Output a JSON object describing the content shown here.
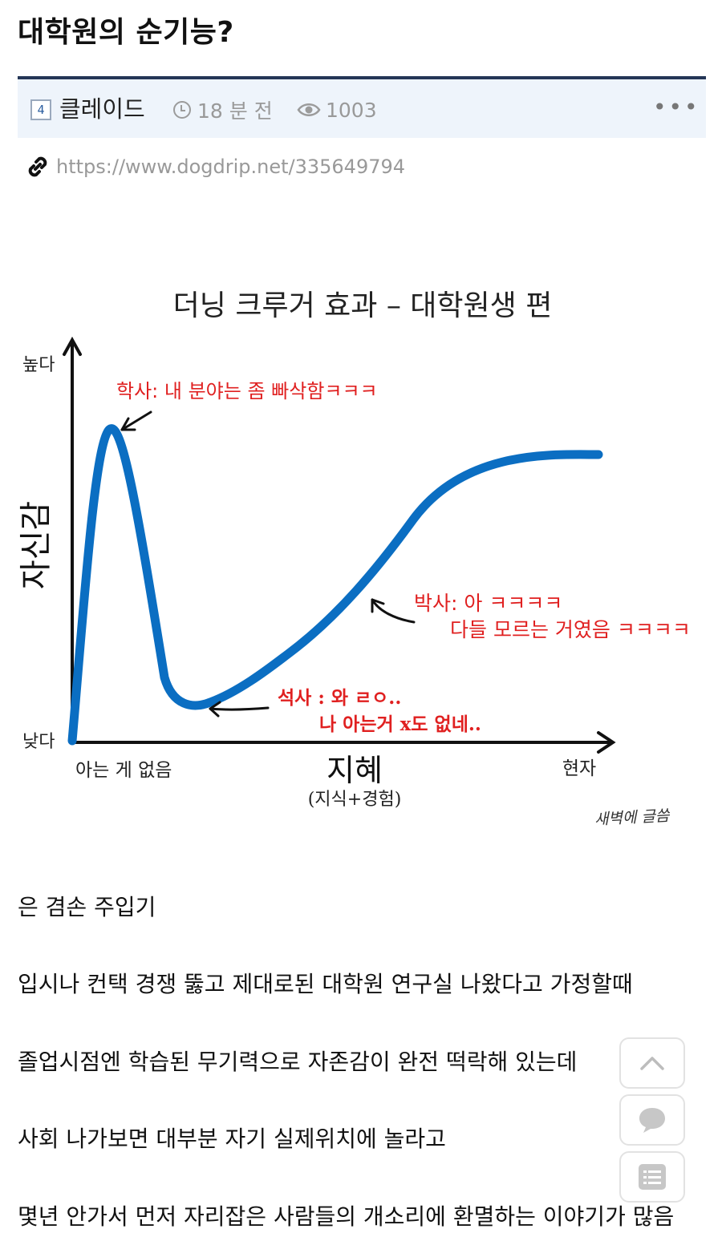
{
  "post": {
    "title": "대학원의 순기능?",
    "author": "클레이드",
    "author_badge": "4",
    "time": "18 분 전",
    "views": "1003",
    "more": "•••",
    "url": "https://www.dogdrip.net/335649794"
  },
  "figure": {
    "title": "더닝 크루거 효과 – 대학원생 편",
    "y_axis_label": "자신감",
    "y_high": "높다",
    "y_low": "낮다",
    "x_axis_label": "지혜",
    "x_axis_sublabel": "(지식+경험)",
    "x_left": "아는 게 없음",
    "x_right": "현자",
    "annotation_bachelor": "학사: 내 분야는 좀 빠삭함ㅋㅋㅋ",
    "annotation_phd_1": "박사: 아 ㅋㅋㅋㅋ",
    "annotation_phd_2": "다들 모르는 거였음 ㅋㅋㅋㅋ",
    "annotation_master_1": "석사 : 와 ㄹㅇ..",
    "annotation_master_2": "나 아는거 x도 없네..",
    "signature": "새벽에 글씀",
    "curve_color": "#0b6ec2",
    "annotation_color": "#e02020"
  },
  "body": {
    "p1": "은 겸손 주입기",
    "p2": "입시나 컨택 경쟁 뚫고 제대로된 대학원 연구실 나왔다고 가정할때",
    "p3": "졸업시점엔 학습된 무기력으로 자존감이 완전 떡락해 있는데",
    "p4": "사회 나가보면 대부분 자기 실제위치에 놀라고",
    "p5": "몇년 안가서 먼저 자리잡은 사람들의 개소리에 환멸하는 이야기가 많음"
  },
  "floating": {
    "top_icon": "chevron-up-icon",
    "comment_icon": "comment-icon",
    "list_icon": "list-icon"
  }
}
